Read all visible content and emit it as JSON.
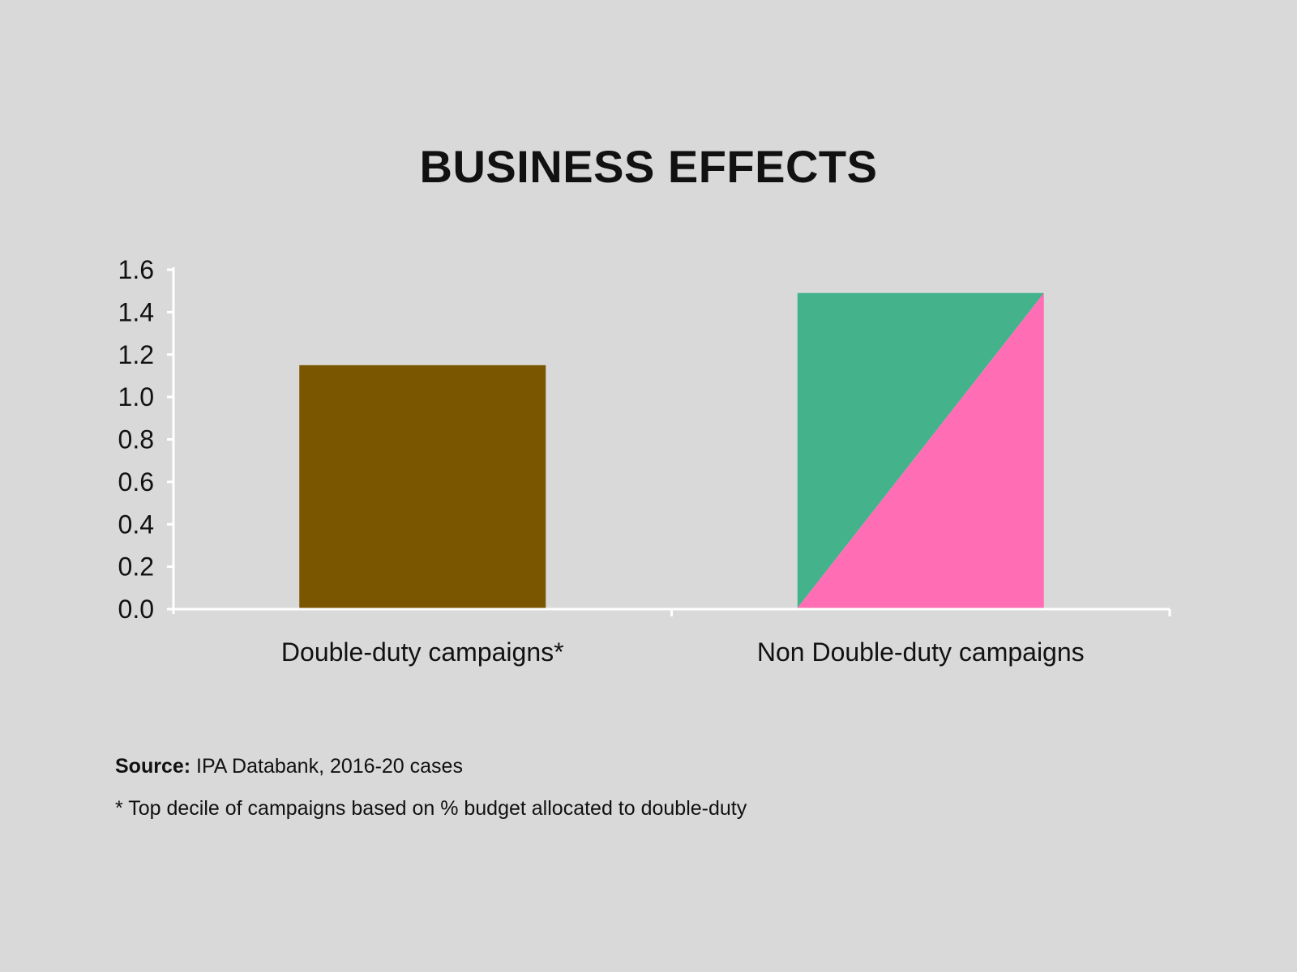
{
  "source_label": "Source:",
  "source_text": "IPA Databank, 2016-20 cases",
  "footnote": "* Top decile of campaigns based on % budget allocated to double-duty",
  "chart_data": {
    "type": "bar",
    "title": "BUSINESS EFFECTS",
    "xlabel": "",
    "ylabel": "",
    "categories": [
      "Double-duty campaigns*",
      "Non Double-duty campaigns"
    ],
    "values": [
      1.15,
      1.49
    ],
    "ylim": [
      0,
      1.6
    ],
    "yticks": [
      "0.0",
      "0.2",
      "0.4",
      "0.6",
      "0.8",
      "1.0",
      "1.2",
      "1.4",
      "1.6"
    ],
    "grid": false,
    "legend": "none",
    "colors": {
      "bar_1": "#7a5600",
      "bar_2_upper": "#44b38c",
      "bar_2_lower": "#ff6eb4",
      "axis": "#ffffff"
    }
  }
}
